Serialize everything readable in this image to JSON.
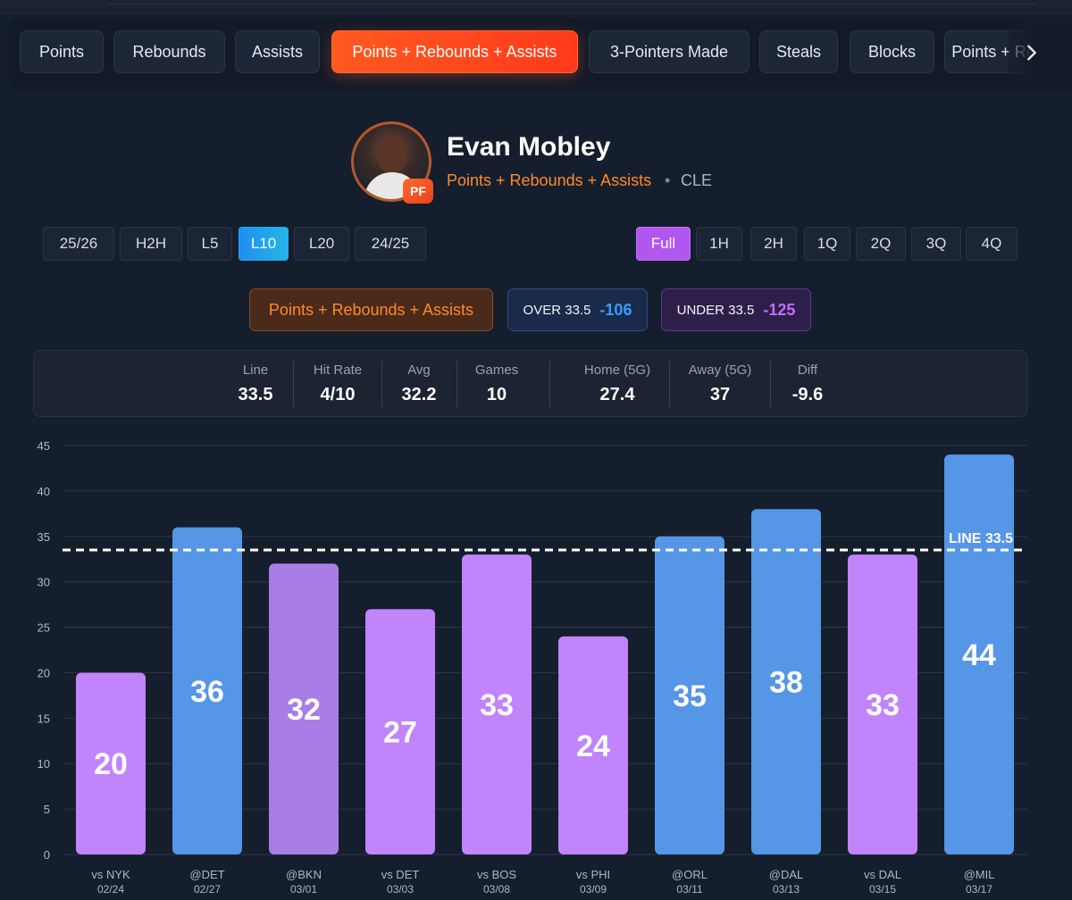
{
  "tabs": [
    {
      "label": "Points",
      "active": false
    },
    {
      "label": "Rebounds",
      "active": false
    },
    {
      "label": "Assists",
      "active": false
    },
    {
      "label": "Points + Rebounds + Assists",
      "active": true
    },
    {
      "label": "3-Pointers Made",
      "active": false
    },
    {
      "label": "Steals",
      "active": false
    },
    {
      "label": "Blocks",
      "active": false
    },
    {
      "label": "Points + Rebo",
      "active": false
    }
  ],
  "player": {
    "name": "Evan Mobley",
    "position": "PF",
    "stat_label": "Points + Rebounds + Assists",
    "separator": "•",
    "team": "CLE"
  },
  "periods": [
    "25/26",
    "H2H",
    "L5",
    "L10",
    "L20",
    "24/25"
  ],
  "active_period": "L10",
  "halves": [
    "Full",
    "1H",
    "2H",
    "1Q",
    "2Q",
    "3Q",
    "4Q"
  ],
  "active_half": "Full",
  "prop": {
    "label": "Points + Rebounds + Assists",
    "over_label": "OVER 33.5",
    "over_odds": "-106",
    "under_label": "UNDER 33.5",
    "under_odds": "-125"
  },
  "summary": {
    "line": {
      "label": "Line",
      "value": "33.5"
    },
    "hit_rate": {
      "label": "Hit Rate",
      "value": "4/10"
    },
    "avg": {
      "label": "Avg",
      "value": "32.2"
    },
    "games": {
      "label": "Games",
      "value": "10"
    },
    "home": {
      "label": "Home (5G)",
      "value": "27.4"
    },
    "away": {
      "label": "Away (5G)",
      "value": "37"
    },
    "diff": {
      "label": "Diff",
      "value": "-9.6"
    }
  },
  "colors": {
    "over_bar": "#5596e6",
    "under_bar": "#c184fb",
    "highlight_bar": "#a97de6",
    "accent_orange": "#ff5a1f",
    "line_color": "#ffffff"
  },
  "chart_data": {
    "type": "bar",
    "categories": [
      "vs NYK",
      "@DET",
      "@BKN",
      "vs DET",
      "vs BOS",
      "vs PHI",
      "@ORL",
      "@DAL",
      "vs DAL",
      "@MIL"
    ],
    "dates": [
      "02/24",
      "02/27",
      "03/01",
      "03/03",
      "03/08",
      "03/09",
      "03/11",
      "03/13",
      "03/15",
      "03/17"
    ],
    "values": [
      20,
      36,
      32,
      27,
      33,
      24,
      35,
      38,
      33,
      44
    ],
    "ylim": [
      0,
      45
    ],
    "yticks": [
      0,
      5,
      10,
      15,
      20,
      25,
      30,
      35,
      40,
      45
    ],
    "line_value": 33.5,
    "line_label": "LINE 33.5",
    "highlight_index": 2,
    "grid": true
  }
}
